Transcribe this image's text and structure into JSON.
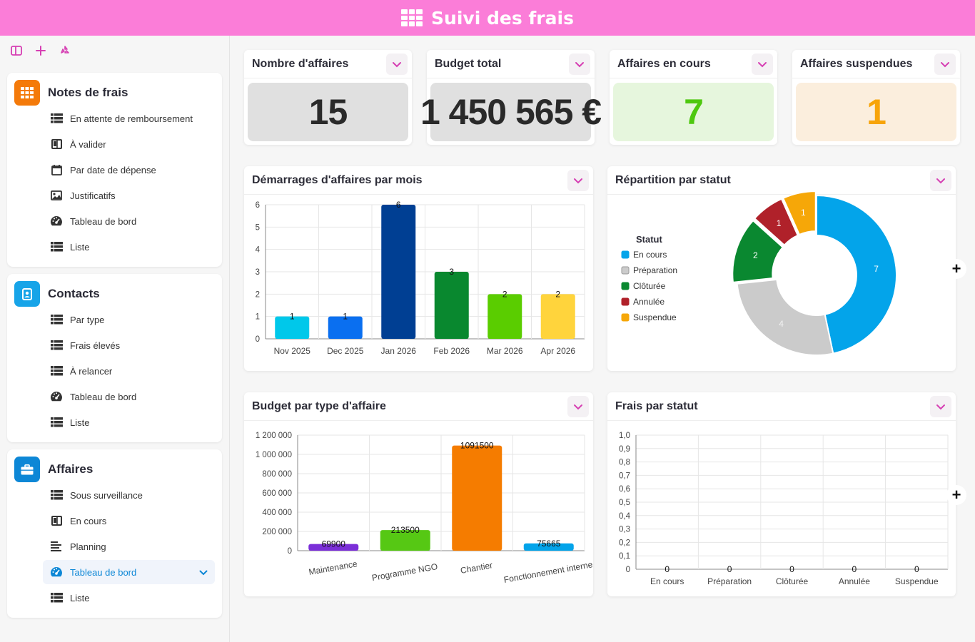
{
  "header": {
    "title": "Suivi des frais"
  },
  "colors": {
    "header_bg": "#fb7dd8",
    "accent": "#d63fb3",
    "active_blue": "#0d87d6"
  },
  "sidebar": {
    "sections": [
      {
        "title": "Notes de frais",
        "icon": "grid-icon",
        "color": "#f47a0a",
        "items": [
          {
            "label": "En attente de remboursement",
            "icon": "table-icon"
          },
          {
            "label": "À valider",
            "icon": "kanban-icon"
          },
          {
            "label": "Par date de dépense",
            "icon": "calendar-icon"
          },
          {
            "label": "Justificatifs",
            "icon": "image-icon"
          },
          {
            "label": "Tableau de bord",
            "icon": "gauge-icon"
          },
          {
            "label": "Liste",
            "icon": "table-icon"
          }
        ]
      },
      {
        "title": "Contacts",
        "icon": "contact-card-icon",
        "color": "#17a4e8",
        "items": [
          {
            "label": "Par type",
            "icon": "table-icon"
          },
          {
            "label": "Frais élevés",
            "icon": "table-icon"
          },
          {
            "label": "À relancer",
            "icon": "table-icon"
          },
          {
            "label": "Tableau de bord",
            "icon": "gauge-icon"
          },
          {
            "label": "Liste",
            "icon": "table-icon"
          }
        ]
      },
      {
        "title": "Affaires",
        "icon": "briefcase-icon",
        "color": "#0d87d6",
        "items": [
          {
            "label": "Sous surveillance",
            "icon": "table-icon"
          },
          {
            "label": "En cours",
            "icon": "kanban-icon"
          },
          {
            "label": "Planning",
            "icon": "timeline-icon"
          },
          {
            "label": "Tableau de bord",
            "icon": "gauge-icon",
            "active": true
          },
          {
            "label": "Liste",
            "icon": "table-icon"
          }
        ]
      }
    ]
  },
  "kpis": [
    {
      "title": "Nombre d'affaires",
      "value": "15",
      "bg": "#e0e0e0",
      "fg": "#2a2a2a"
    },
    {
      "title": "Budget total",
      "value": "1 450 565 €",
      "bg": "#e0e0e0",
      "fg": "#2a2a2a"
    },
    {
      "title": "Affaires en cours",
      "value": "7",
      "bg": "#e6f6dd",
      "fg": "#4ec80f"
    },
    {
      "title": "Affaires suspendues",
      "value": "1",
      "bg": "#fbeedd",
      "fg": "#f7a40a"
    }
  ],
  "chart_data": [
    {
      "id": "demarrages",
      "type": "bar",
      "title": "Démarrages d'affaires par mois",
      "categories": [
        "Nov 2025",
        "Dec 2025",
        "Jan 2026",
        "Feb 2026",
        "Mar 2026",
        "Apr 2026"
      ],
      "values": [
        1,
        1,
        6,
        3,
        2,
        2
      ],
      "colors": [
        "#00c8ea",
        "#0a6ff0",
        "#003f93",
        "#09882f",
        "#5acd00",
        "#ffd43c"
      ],
      "ylim": [
        0,
        6
      ],
      "yticks": [
        "0",
        "1",
        "2",
        "3",
        "4",
        "5",
        "6"
      ],
      "grid": true
    },
    {
      "id": "repartition",
      "type": "pie",
      "title": "Répartition par statut",
      "legend_title": "Statut",
      "categories": [
        "En cours",
        "Préparation",
        "Clôturée",
        "Annulée",
        "Suspendue"
      ],
      "values": [
        7,
        4,
        2,
        1,
        1
      ],
      "colors": [
        "#03a4ea",
        "#cbcbcb",
        "#0a8830",
        "#b0212a",
        "#f6a708"
      ],
      "legend": "left"
    },
    {
      "id": "budget",
      "type": "bar",
      "title": "Budget par type d'affaire",
      "categories": [
        "Maintenance",
        "Programme NGO",
        "Chantier",
        "Fonctionnement interne"
      ],
      "values": [
        69900,
        213500,
        1091500,
        75665
      ],
      "colors": [
        "#7b2fd8",
        "#56c814",
        "#f57c00",
        "#03a4ea"
      ],
      "ylim": [
        0,
        1200000
      ],
      "yticks": [
        "0",
        "200 000",
        "400 000",
        "600 000",
        "800 000",
        "1 000 000",
        "1 200 000"
      ],
      "grid": true
    },
    {
      "id": "frais",
      "type": "bar",
      "title": "Frais par statut",
      "categories": [
        "En cours",
        "Préparation",
        "Clôturée",
        "Annulée",
        "Suspendue"
      ],
      "values": [
        0,
        0,
        0,
        0,
        0
      ],
      "ylim": [
        0,
        1
      ],
      "yticks": [
        "0",
        "0,1",
        "0,2",
        "0,3",
        "0,4",
        "0,5",
        "0,6",
        "0,7",
        "0,8",
        "0,9",
        "1,0"
      ],
      "grid": true
    }
  ]
}
